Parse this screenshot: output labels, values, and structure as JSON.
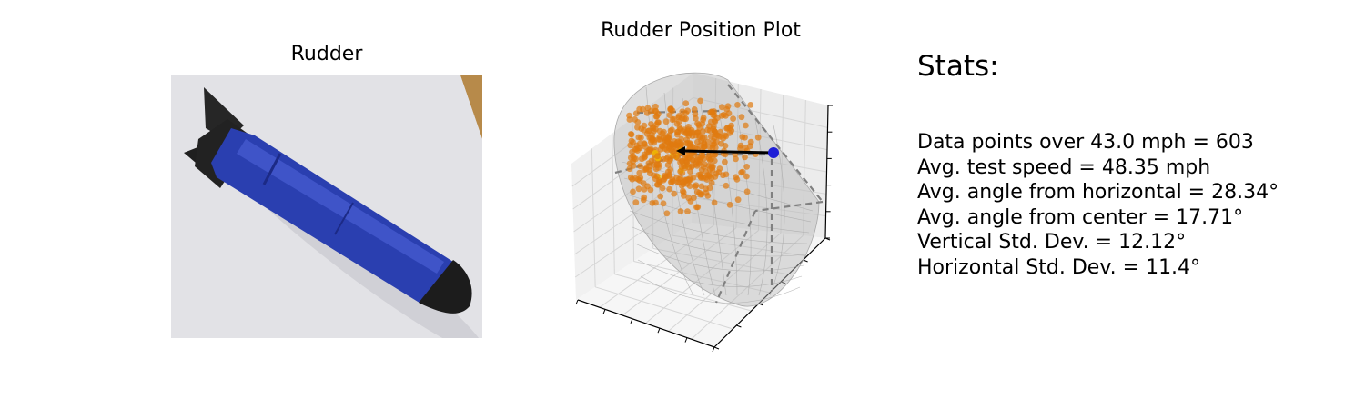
{
  "photo_panel": {
    "title": "Rudder"
  },
  "chart_data": {
    "type": "scatter",
    "title": "Rudder Position Plot",
    "xlabel": "",
    "ylabel": "",
    "zlabel": "",
    "projection": "3d",
    "tick_labels_visible": false,
    "grid": true,
    "colors": {
      "points": "#e07a10",
      "points_core": "#f2c600",
      "reference_point": "#1f1fd6",
      "arrow": "#000000",
      "surface": "#b8b8b8",
      "guide_lines": "#808080"
    }
  },
  "stats": {
    "heading": "Stats:",
    "lines": [
      "Data points over 43.0 mph = 603",
      "Avg. test speed = 48.35 mph",
      "Avg. angle from horizontal = 28.34°",
      "Avg. angle from center = 17.71°",
      "Vertical Std. Dev. = 12.12°",
      "Horizontal Std. Dev. = 11.4°"
    ]
  }
}
